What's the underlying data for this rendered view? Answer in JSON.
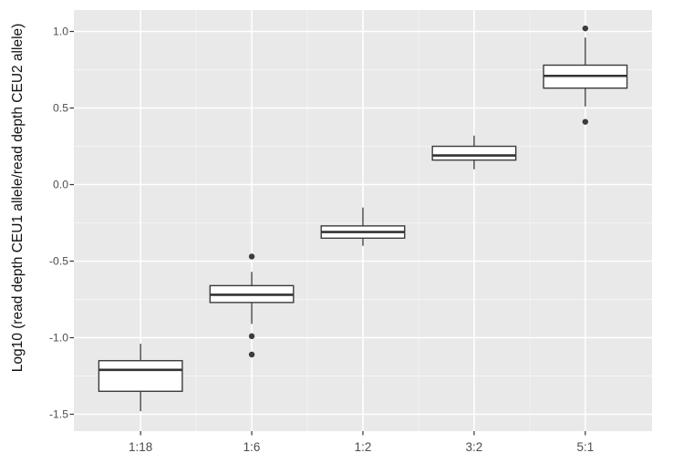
{
  "figure": {
    "background": "#FFFFFF",
    "panel_background": "#E9E9E9",
    "grid_major_color": "#FFFFFF",
    "grid_minor_color": "#FFFFFF",
    "box_fill": "#FFFFFF",
    "box_stroke": "#3B3B3B",
    "median_color": "#333333",
    "outlier_color": "#3B3B3B",
    "tick_color": "#333333",
    "tick_label_color": "#4D4D4D",
    "axis_title_color": "#111111"
  },
  "chart_data": {
    "type": "boxplot",
    "title": "",
    "xlabel": "",
    "ylabel": "Log10 (read depth CEU1 allele/read depth CEU2 allele)",
    "categories": [
      "1:18",
      "1:6",
      "1:2",
      "3:2",
      "5:1"
    ],
    "y_ticks": [
      1.0,
      0.5,
      0.0,
      -0.5,
      -1.0,
      -1.5
    ],
    "y_tick_labels": [
      "1.0",
      "0.5",
      "0.0",
      "-0.5",
      "-1.0",
      "-1.5"
    ],
    "ylim": [
      -1.61,
      1.14
    ],
    "grid": "major and minor, white on grey panel",
    "legend": "none",
    "boxes": [
      {
        "category": "1:18",
        "whisker_low": -1.48,
        "q1": -1.35,
        "median": -1.21,
        "q3": -1.15,
        "whisker_high": -1.04,
        "outliers": []
      },
      {
        "category": "1:6",
        "whisker_low": -0.91,
        "q1": -0.77,
        "median": -0.72,
        "q3": -0.66,
        "whisker_high": -0.57,
        "outliers": [
          -0.47,
          -0.99,
          -1.11
        ]
      },
      {
        "category": "1:2",
        "whisker_low": -0.4,
        "q1": -0.35,
        "median": -0.31,
        "q3": -0.27,
        "whisker_high": -0.15,
        "outliers": []
      },
      {
        "category": "3:2",
        "whisker_low": 0.1,
        "q1": 0.16,
        "median": 0.19,
        "q3": 0.25,
        "whisker_high": 0.32,
        "outliers": []
      },
      {
        "category": "5:1",
        "whisker_low": 0.51,
        "q1": 0.63,
        "median": 0.71,
        "q3": 0.78,
        "whisker_high": 0.96,
        "outliers": [
          1.02,
          0.41
        ]
      }
    ]
  }
}
